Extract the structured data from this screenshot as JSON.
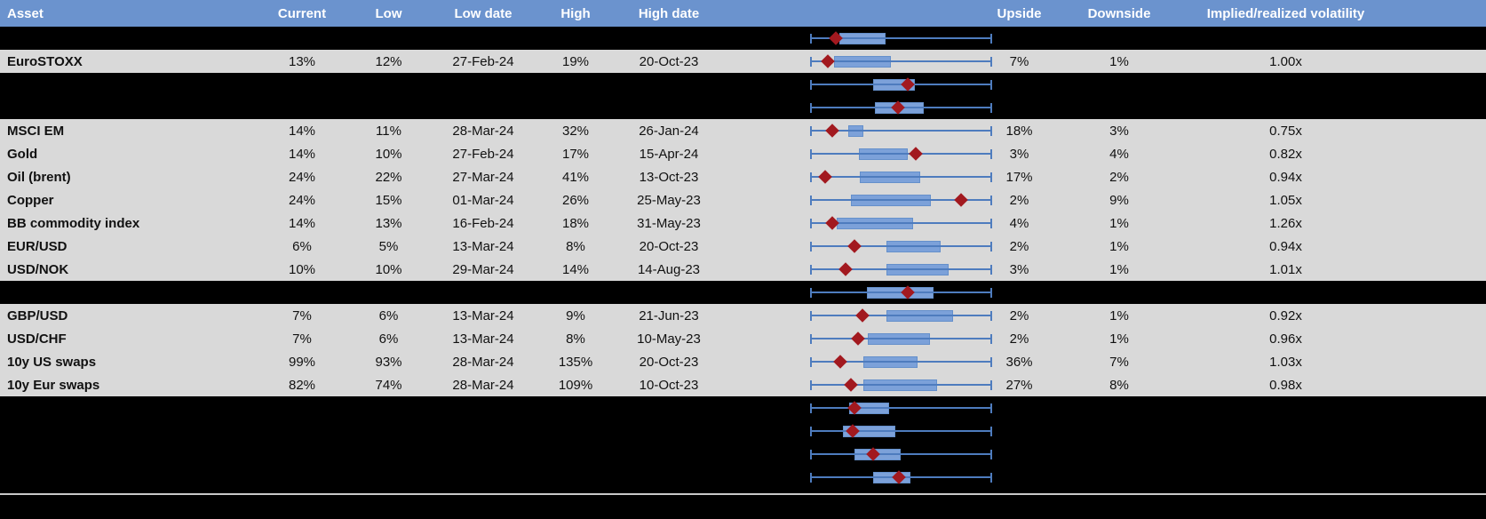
{
  "colors": {
    "header_bg": "#6B93CE",
    "header_text": "#FFFFFF",
    "row_gray": "#D9D9D9",
    "row_black": "#000000",
    "whisker": "#4E7CBE",
    "box_fill": "#7CA1D9",
    "box_border": "#6590CB",
    "diamond": "#A2191F",
    "divider": "#C8C8C8"
  },
  "chart_data": {
    "type": "table",
    "columns": [
      "Asset",
      "Current",
      "Low",
      "Low date",
      "High",
      "High date",
      "",
      "Upside",
      "Downside",
      "Implied/realized volatility"
    ],
    "boxplot_note": "Each row shows a horizontal box plot; whiskers span the full plot width on every row; box and red diamond marker positions are normalized 0-1 across the whisker span",
    "rows": [
      {
        "style": "black",
        "box": [
          0.161,
          0.415
        ],
        "marker": 0.14
      },
      {
        "style": "gray",
        "asset": "EuroSTOXX",
        "current": "13%",
        "low": "12%",
        "low_date": "27-Feb-24",
        "high": "19%",
        "high_date": "20-Oct-23",
        "box": [
          0.132,
          0.444
        ],
        "marker": 0.098,
        "upside": "7%",
        "downside": "1%",
        "vol": "1.00x"
      },
      {
        "style": "black",
        "box": [
          0.348,
          0.576
        ],
        "marker": 0.535
      },
      {
        "style": "black",
        "box": [
          0.356,
          0.624
        ],
        "marker": 0.481
      },
      {
        "style": "gray",
        "asset": "MSCI EM",
        "current": "14%",
        "low": "11%",
        "low_date": "28-Mar-24",
        "high": "32%",
        "high_date": "26-Jan-24",
        "box": [
          0.21,
          0.294
        ],
        "marker": 0.123,
        "upside": "18%",
        "downside": "3%",
        "vol": "0.75x"
      },
      {
        "style": "gray",
        "asset": "Gold",
        "current": "14%",
        "low": "10%",
        "low_date": "27-Feb-24",
        "high": "17%",
        "high_date": "15-Apr-24",
        "box": [
          0.267,
          0.535
        ],
        "marker": 0.579,
        "upside": "3%",
        "downside": "4%",
        "vol": "0.82x"
      },
      {
        "style": "gray",
        "asset": "Oil (brent)",
        "current": "24%",
        "low": "22%",
        "low_date": "27-Mar-24",
        "high": "41%",
        "high_date": "13-Oct-23",
        "box": [
          0.272,
          0.605
        ],
        "marker": 0.084,
        "upside": "17%",
        "downside": "2%",
        "vol": "0.94x"
      },
      {
        "style": "gray",
        "asset": "Copper",
        "current": "24%",
        "low": "15%",
        "low_date": "01-Mar-24",
        "high": "26%",
        "high_date": "25-May-23",
        "box": [
          0.223,
          0.662
        ],
        "marker": 0.828,
        "upside": "2%",
        "downside": "9%",
        "vol": "1.05x"
      },
      {
        "style": "gray",
        "asset": "BB commodity index",
        "current": "14%",
        "low": "13%",
        "low_date": "16-Feb-24",
        "high": "18%",
        "high_date": "31-May-23",
        "box": [
          0.145,
          0.564
        ],
        "marker": 0.12,
        "upside": "4%",
        "downside": "1%",
        "vol": "1.26x"
      },
      {
        "style": "gray",
        "asset": "EUR/USD",
        "current": "6%",
        "low": "5%",
        "low_date": "13-Mar-24",
        "high": "8%",
        "high_date": "20-Oct-23",
        "box": [
          0.421,
          0.719
        ],
        "marker": 0.245,
        "upside": "2%",
        "downside": "1%",
        "vol": "0.94x"
      },
      {
        "style": "gray",
        "asset": "USD/NOK",
        "current": "10%",
        "low": "10%",
        "low_date": "29-Mar-24",
        "high": "14%",
        "high_date": "14-Aug-23",
        "box": [
          0.418,
          0.763
        ],
        "marker": 0.197,
        "upside": "3%",
        "downside": "1%",
        "vol": "1.01x"
      },
      {
        "style": "black",
        "box": [
          0.31,
          0.678
        ],
        "marker": 0.535
      },
      {
        "style": "gray",
        "asset": "GBP/USD",
        "current": "7%",
        "low": "6%",
        "low_date": "13-Mar-24",
        "high": "9%",
        "high_date": "21-Jun-23",
        "box": [
          0.418,
          0.787
        ],
        "marker": 0.288,
        "upside": "2%",
        "downside": "1%",
        "vol": "0.92x"
      },
      {
        "style": "gray",
        "asset": "USD/CHF",
        "current": "7%",
        "low": "6%",
        "low_date": "13-Mar-24",
        "high": "8%",
        "high_date": "10-May-23",
        "box": [
          0.316,
          0.657
        ],
        "marker": 0.262,
        "upside": "2%",
        "downside": "1%",
        "vol": "0.96x"
      },
      {
        "style": "gray",
        "asset": "10y US swaps",
        "current": "99%",
        "low": "93%",
        "low_date": "28-Mar-24",
        "high": "135%",
        "high_date": "20-Oct-23",
        "box": [
          0.291,
          0.589
        ],
        "marker": 0.164,
        "upside": "36%",
        "downside": "7%",
        "vol": "1.03x"
      },
      {
        "style": "gray",
        "asset": "10y Eur swaps",
        "current": "82%",
        "low": "74%",
        "low_date": "28-Mar-24",
        "high": "109%",
        "high_date": "10-Oct-23",
        "box": [
          0.291,
          0.698
        ],
        "marker": 0.226,
        "upside": "27%",
        "downside": "8%",
        "vol": "0.98x"
      },
      {
        "style": "black",
        "box": [
          0.215,
          0.434
        ],
        "marker": 0.245
      },
      {
        "style": "black",
        "box": [
          0.182,
          0.467
        ],
        "marker": 0.233
      },
      {
        "style": "black",
        "box": [
          0.242,
          0.499
        ],
        "marker": 0.348
      },
      {
        "style": "black",
        "box": [
          0.348,
          0.551
        ],
        "marker": 0.489
      }
    ]
  }
}
